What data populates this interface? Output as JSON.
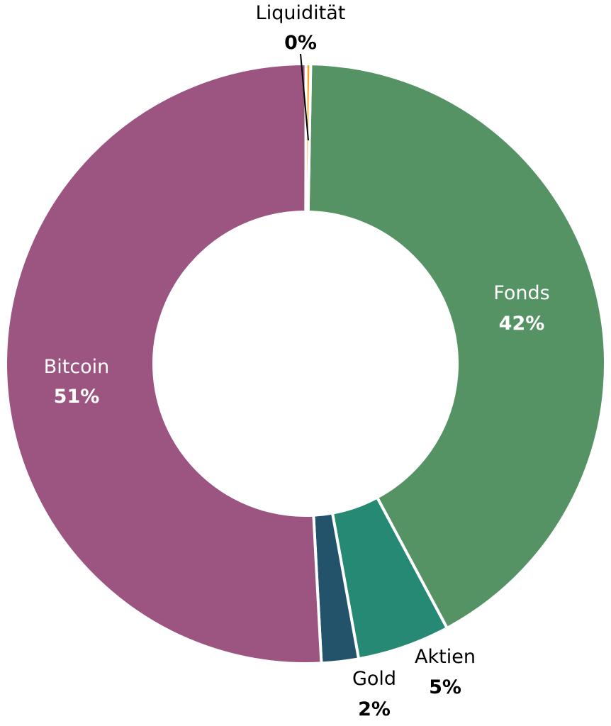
{
  "chart_data": {
    "type": "pie",
    "variant": "donut",
    "categories": [
      "Fonds",
      "Aktien",
      "Gold",
      "Bitcoin",
      "Liquidität"
    ],
    "values": [
      42,
      5,
      2,
      51,
      0
    ],
    "labels": [
      "42%",
      "5%",
      "2%",
      "51%",
      "0%"
    ],
    "colors": [
      "#559264",
      "#268973",
      "#22536b",
      "#9b5580",
      "#f4a41e"
    ],
    "legend": "none"
  }
}
